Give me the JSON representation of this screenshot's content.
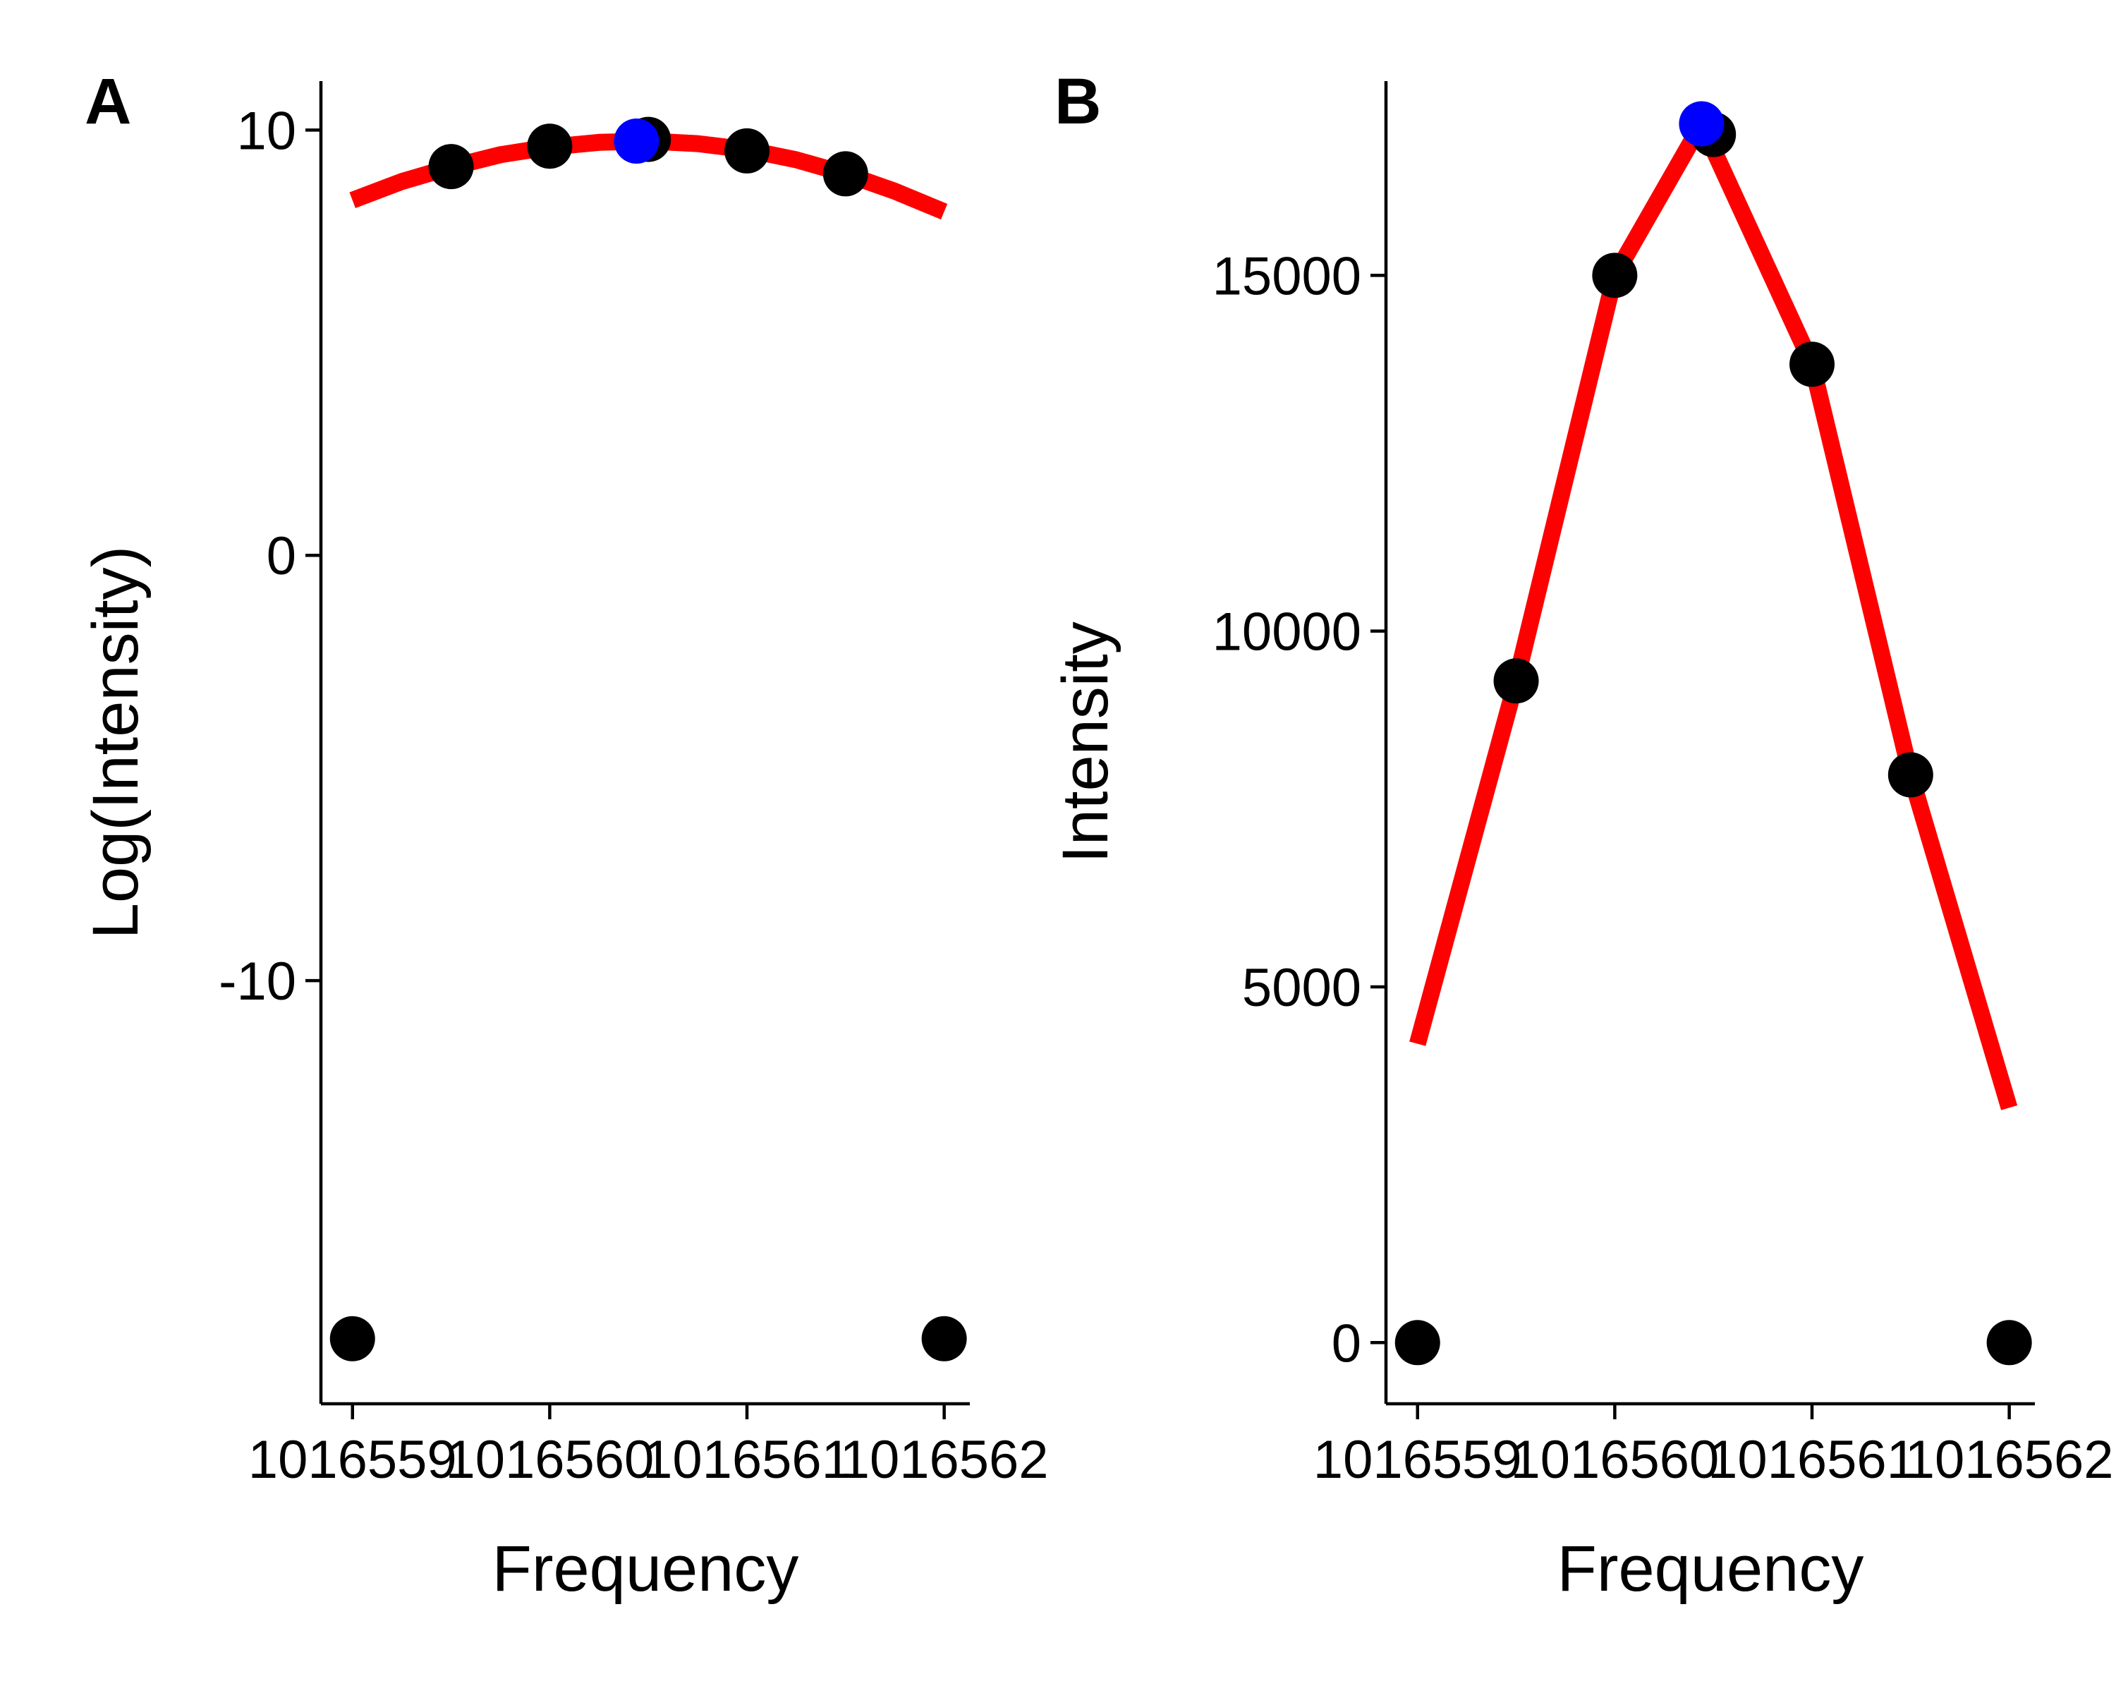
{
  "chart_data": [
    {
      "panel": "A",
      "type": "scatter",
      "xlabel": "Frequency",
      "ylabel": "Log(Intensity)",
      "xlim": [
        1016558.84,
        1016562.13
      ],
      "ylim": [
        -19.95,
        11.15
      ],
      "x_ticks": [
        1016559,
        1016560,
        1016561,
        1016562
      ],
      "x_tick_labels": [
        "1016559",
        "1016560",
        "1016561",
        "1016562"
      ],
      "y_ticks": [
        -10,
        0,
        10
      ],
      "y_tick_labels": [
        "-10",
        "0",
        "10"
      ],
      "points": {
        "x": [
          1016559.0,
          1016559.5,
          1016560.0,
          1016560.5,
          1016561.0,
          1016561.5,
          1016562.0
        ],
        "y": [
          -18.42,
          9.14,
          9.62,
          9.78,
          9.51,
          8.97,
          -18.42
        ]
      },
      "peak_point": {
        "x": 1016560.44,
        "y": 9.74
      },
      "fit_curve": {
        "x": [
          1016559.0,
          1016559.25,
          1016559.5,
          1016559.75,
          1016560.0,
          1016560.25,
          1016560.5,
          1016560.75,
          1016561.0,
          1016561.25,
          1016561.5,
          1016561.75,
          1016562.0
        ],
        "y": [
          8.35,
          8.79,
          9.13,
          9.42,
          9.6,
          9.71,
          9.74,
          9.68,
          9.54,
          9.3,
          8.97,
          8.56,
          8.08
        ]
      },
      "colors": {
        "points": "#000000",
        "peak": "#0000ff",
        "fit": "#ff0000"
      }
    },
    {
      "panel": "B",
      "type": "line",
      "xlabel": "Frequency",
      "ylabel": "Intensity",
      "xlim": [
        1016558.84,
        1016562.13
      ],
      "ylim": [
        -860,
        17730
      ],
      "x_ticks": [
        1016559,
        1016560,
        1016561,
        1016562
      ],
      "x_tick_labels": [
        "1016559",
        "1016560",
        "1016561",
        "1016562"
      ],
      "y_ticks": [
        0,
        5000,
        10000,
        15000
      ],
      "y_tick_labels": [
        "0",
        "5000",
        "10000",
        "15000"
      ],
      "points": {
        "x": [
          1016559.0,
          1016559.5,
          1016560.0,
          1016560.5,
          1016561.0,
          1016561.5,
          1016562.0
        ],
        "y": [
          0,
          9300,
          15000,
          16980,
          13750,
          7980,
          0
        ]
      },
      "peak_point": {
        "x": 1016560.44,
        "y": 17130
      },
      "fit_curve": {
        "x": [
          1016559.0,
          1016559.5,
          1016560.0,
          1016560.44,
          1016561.0,
          1016561.5,
          1016562.0
        ],
        "y": [
          4200,
          9300,
          15000,
          17130,
          13750,
          7980,
          3300
        ]
      },
      "colors": {
        "points": "#000000",
        "peak": "#0000ff",
        "fit": "#ff0000"
      }
    }
  ]
}
